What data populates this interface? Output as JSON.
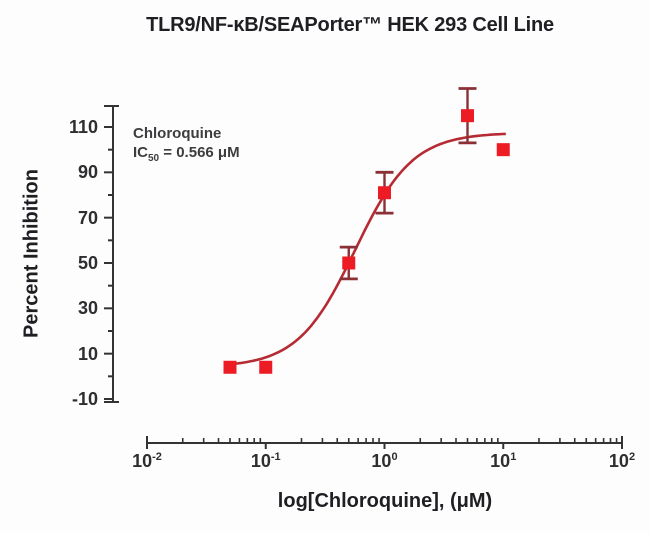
{
  "chart_data": {
    "type": "scatter",
    "title": "TLR9/NF-κB/SEAPorter™ HEK 293 Cell Line",
    "xlabel": "log[Chloroquine], (μM)",
    "ylabel": "Percent Inhibition",
    "x_scale": "log",
    "x_tick_exponents": [
      -2,
      -1,
      0,
      1,
      2
    ],
    "x_range_exponents": [
      -2,
      2
    ],
    "y_ticks": [
      110,
      90,
      70,
      50,
      30,
      10,
      -10
    ],
    "y_minor_ticks": [
      100,
      80,
      60,
      40,
      20,
      0
    ],
    "ylim": [
      -11,
      119
    ],
    "grid": false,
    "legend": "none",
    "annotation": {
      "compound": "Chloroquine",
      "ic50_prefix": "IC",
      "ic50_sub": "50",
      "ic50_rest": " = 0.566 μM"
    },
    "series": [
      {
        "name": "Chloroquine",
        "marker": "square",
        "x": [
          0.05,
          0.1,
          0.5,
          1,
          5,
          10
        ],
        "y": [
          4,
          4,
          50,
          81,
          115,
          100
        ],
        "yerr": [
          null,
          null,
          7,
          9,
          12,
          null
        ]
      }
    ],
    "fit": {
      "model": "4PL sigmoid",
      "bottom": 4,
      "top": 107.5,
      "ic50": 0.566,
      "hill": 1.8,
      "x_start": 0.048,
      "x_end": 10.5
    },
    "colors": {
      "marker": "#ed1c24",
      "curve": "#b62b33",
      "error_bar": "#8a3036",
      "axis": "#333333",
      "text": "#262626"
    }
  }
}
